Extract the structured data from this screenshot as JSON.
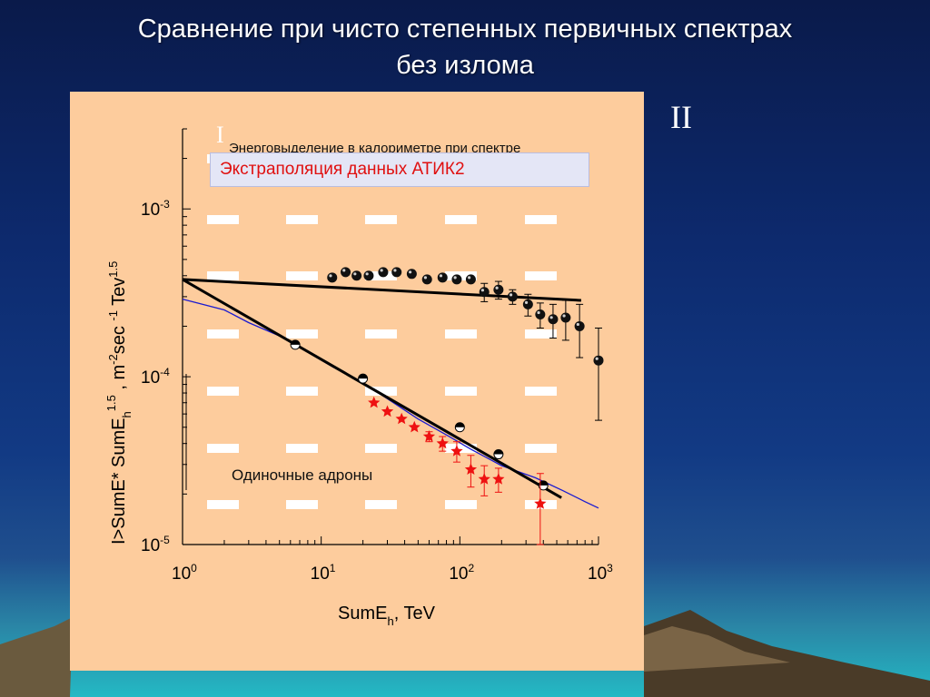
{
  "slide": {
    "title_line1": "Сравнение при чисто степенных первичных спектрах",
    "title_line2": "без излома",
    "roman_right": "II",
    "roman_left": "I"
  },
  "annotations": {
    "atik_box": "Экстраполяция данных АТИК2",
    "partial_text": "Энерговыделение в калориметре при спектре",
    "single_hadrons": "Одиночные адроны"
  },
  "colors": {
    "panel": "#fdcc9d",
    "atik_text": "#e01010",
    "stars": "#ee1111",
    "blue_line": "#1a1ad0",
    "black": "#000000"
  },
  "chart_data": {
    "type": "scatter",
    "xscale": "log",
    "yscale": "log",
    "xlim": [
      1,
      1000
    ],
    "ylim": [
      1e-05,
      0.003
    ],
    "xticks": [
      {
        "value": 1,
        "base": "10",
        "exp": "0"
      },
      {
        "value": 10,
        "base": "10",
        "exp": "1"
      },
      {
        "value": 100,
        "base": "10",
        "exp": "2"
      },
      {
        "value": 1000,
        "base": "10",
        "exp": "3"
      }
    ],
    "yticks": [
      {
        "value": 1e-05,
        "base": "10",
        "exp": "-5"
      },
      {
        "value": 0.0001,
        "base": "10",
        "exp": "-4"
      },
      {
        "value": 0.001,
        "base": "10",
        "exp": "-3"
      }
    ],
    "xlabel": {
      "main": "SumE",
      "sub": "h",
      "rest": ", TeV"
    },
    "ylabel": {
      "p1": "I>SumE* SumE",
      "s1": "h",
      "p2": "1.5",
      "p3": " , m",
      "p4": "-2",
      "p5": "sec ",
      "p6": "-1",
      "p7": " Tev",
      "p8": "1.5"
    },
    "series": [
      {
        "marker": "black-ball",
        "x": [
          12,
          15,
          18,
          22,
          28,
          35,
          45,
          58,
          75,
          95,
          120,
          150,
          190,
          240,
          310,
          380,
          470,
          580,
          730,
          1000
        ],
        "y": [
          0.00039,
          0.00042,
          0.0004,
          0.0004,
          0.00042,
          0.00042,
          0.00041,
          0.00038,
          0.00039,
          0.00038,
          0.00038,
          0.00032,
          0.00033,
          0.0003,
          0.00027,
          0.000235,
          0.00022,
          0.000225,
          0.0002,
          0.000125
        ],
        "yerr": [
          0,
          0,
          0,
          0,
          0,
          0,
          0,
          0,
          0,
          0,
          0,
          4e-05,
          4e-05,
          3e-05,
          4e-05,
          4e-05,
          5e-05,
          6e-05,
          7e-05,
          7e-05
        ]
      },
      {
        "marker": "half-ball",
        "x": [
          6.5,
          20,
          100,
          190,
          400
        ],
        "y": [
          0.000155,
          9.75e-05,
          5e-05,
          3.45e-05,
          2.25e-05
        ]
      },
      {
        "marker": "red-star",
        "x": [
          24,
          30,
          38,
          47,
          60,
          75,
          95,
          120,
          150,
          190,
          380
        ],
        "y": [
          7e-05,
          6.2e-05,
          5.6e-05,
          5e-05,
          4.4e-05,
          4e-05,
          3.6e-05,
          2.8e-05,
          2.45e-05,
          2.45e-05,
          1.75e-05
        ],
        "yerr": [
          0,
          0,
          0,
          0,
          3e-06,
          4e-06,
          5e-06,
          6e-06,
          5e-06,
          4e-06,
          9e-06
        ]
      }
    ],
    "fits": [
      {
        "x": [
          1,
          750
        ],
        "y": [
          0.00038,
          0.000285
        ]
      },
      {
        "x": [
          1,
          540
        ],
        "y": [
          0.00038,
          1.9e-05
        ]
      }
    ],
    "blue_curve": {
      "x": [
        1,
        2,
        3,
        5,
        8,
        12,
        20,
        30,
        50,
        80,
        120,
        200,
        350,
        550,
        800,
        1000
      ],
      "y": [
        0.00029,
        0.00025,
        0.00021,
        0.000175,
        0.00014,
        0.000115,
        9.2e-05,
        7.4e-05,
        5.6e-05,
        4.5e-05,
        3.7e-05,
        2.95e-05,
        2.5e-05,
        2.1e-05,
        1.8e-05,
        1.65e-05
      ]
    }
  }
}
